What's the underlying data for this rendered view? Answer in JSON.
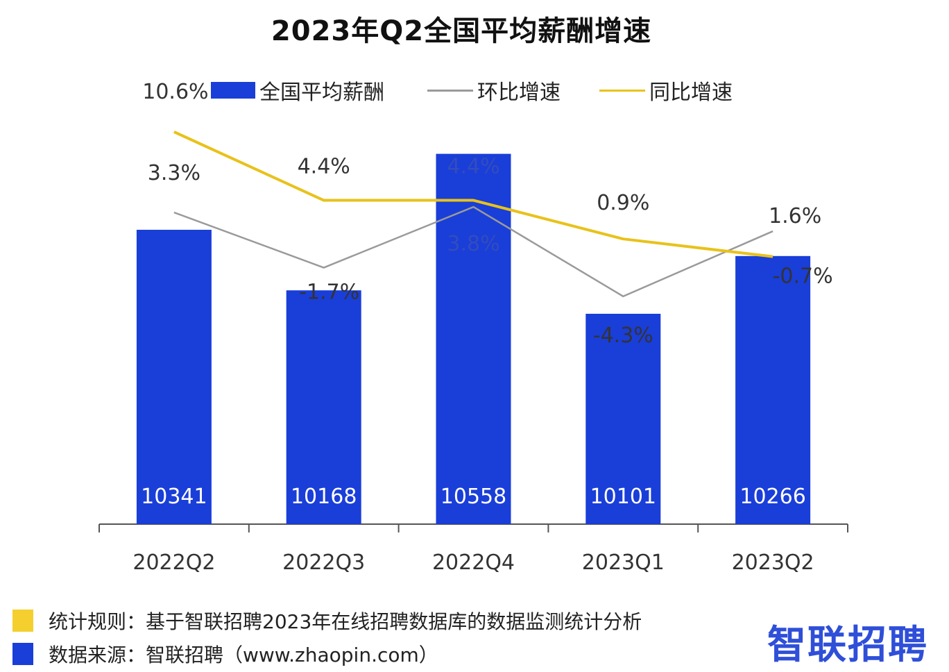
{
  "chart_data": {
    "type": "bar",
    "title": "2023年Q2全国平均薪酬增速",
    "categories": [
      "2022Q2",
      "2022Q3",
      "2022Q4",
      "2023Q1",
      "2023Q2"
    ],
    "series": [
      {
        "name": "全国平均薪酬",
        "type": "bar",
        "color": "#1a3ed8",
        "values": [
          10341,
          10168,
          10558,
          10101,
          10266
        ],
        "labels": [
          "10341",
          "10168",
          "10558",
          "10101",
          "10266"
        ]
      },
      {
        "name": "环比增速",
        "type": "line",
        "color": "#9a9a9a",
        "values": [
          3.3,
          -1.7,
          3.8,
          -4.3,
          1.6
        ],
        "labels": [
          "3.3%",
          "-1.7%",
          "3.8%",
          "-4.3%",
          "1.6%"
        ]
      },
      {
        "name": "同比增速",
        "type": "line",
        "color": "#e8c21a",
        "values": [
          10.6,
          4.4,
          4.4,
          0.9,
          -0.7
        ],
        "labels": [
          "10.6%",
          "4.4%",
          "4.4%",
          "0.9%",
          "-0.7%"
        ]
      }
    ],
    "bar_ylim": [
      9500,
      10700
    ],
    "line_ylim": [
      -25,
      15
    ],
    "legend_position": "top"
  },
  "footer": {
    "rule_text": "统计规则：基于智联招聘2023年在线招聘数据库的数据监测统计分析",
    "source_text": "数据来源：智联招聘（www.zhaopin.com）",
    "rule_color": "#f5cf2e",
    "source_color": "#1a3ed8"
  },
  "brand": {
    "logo_text": "智联招聘"
  }
}
